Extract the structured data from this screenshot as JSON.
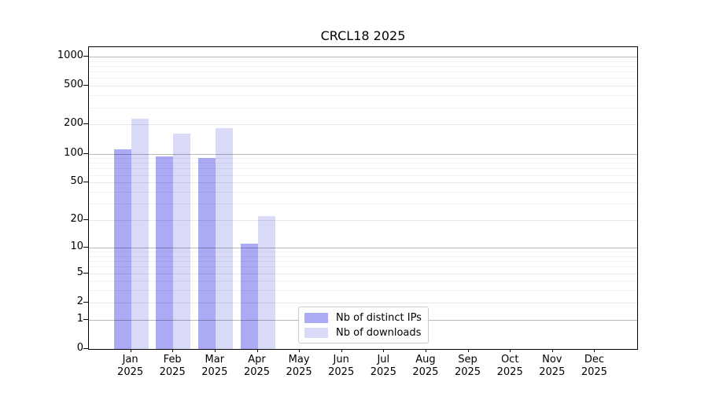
{
  "title": "CRCL18 2025",
  "chart_data": {
    "type": "bar",
    "title": "CRCL18 2025",
    "y_scale": "log10(value+1)",
    "grid": true,
    "year_label": "2025",
    "categories": [
      "Jan",
      "Feb",
      "Mar",
      "Apr",
      "May",
      "Jun",
      "Jul",
      "Aug",
      "Sep",
      "Oct",
      "Nov",
      "Dec"
    ],
    "series": [
      {
        "name": "Nb of distinct IPs",
        "color": "#aaaaf5",
        "values": [
          110,
          94,
          90,
          11,
          0,
          0,
          0,
          0,
          0,
          0,
          0,
          0
        ]
      },
      {
        "name": "Nb of downloads",
        "color": "#d9d9f8",
        "values": [
          230,
          160,
          185,
          22,
          0,
          0,
          0,
          0,
          0,
          0,
          0,
          0
        ]
      }
    ],
    "yticks": [
      0,
      1,
      2,
      5,
      10,
      20,
      50,
      100,
      200,
      500,
      1000
    ],
    "minor_gridline_values": [
      3,
      4,
      6,
      7,
      8,
      9,
      30,
      40,
      60,
      70,
      80,
      90,
      300,
      400,
      600,
      700,
      800,
      900
    ],
    "decade_gridline_values": [
      1,
      10,
      100,
      1000
    ],
    "ylim": [
      0,
      1250
    ],
    "xlabel": "",
    "ylabel": "",
    "legend_position": "lower center"
  }
}
